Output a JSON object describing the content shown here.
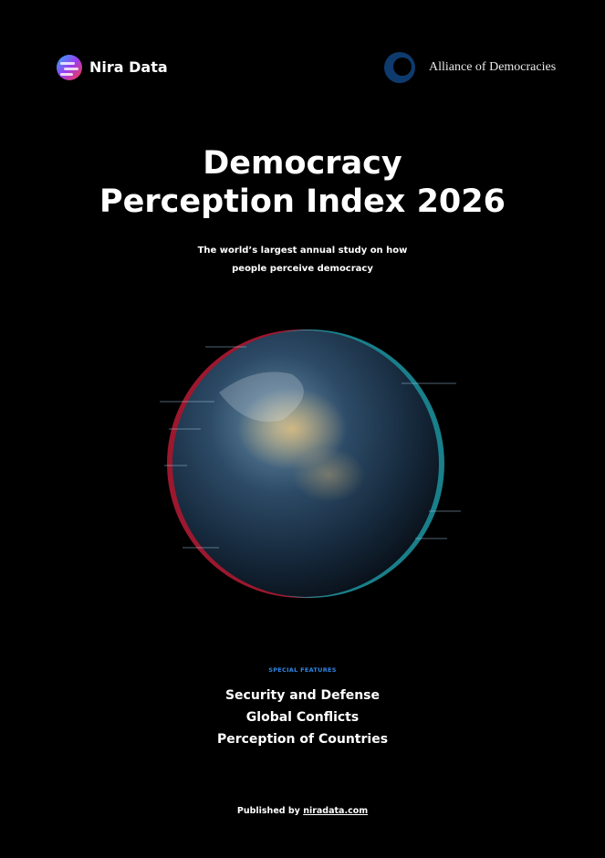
{
  "header": {
    "brand": "Nira Data",
    "partner": "Alliance of Democracies"
  },
  "title": {
    "lines": [
      "Democracy",
      "Perception Index 2026"
    ]
  },
  "subtitle": {
    "lines": [
      "The world’s largest annual study on how",
      "people perceive democracy"
    ]
  },
  "features": {
    "label": "SPECIAL FEATURES",
    "items": [
      "Security and Defense",
      "Global Conflicts",
      "Perception of Countries"
    ]
  },
  "footer": {
    "prefix": "Published by",
    "link": "niradata.com"
  }
}
